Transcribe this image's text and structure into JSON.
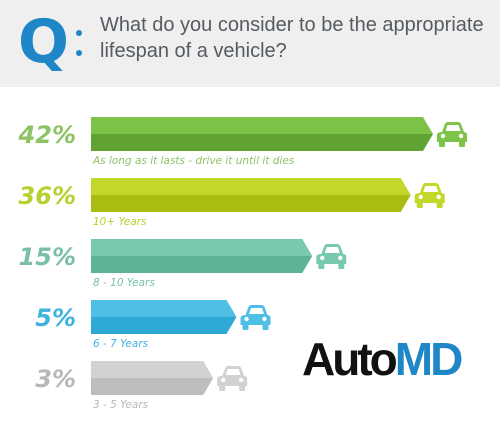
{
  "header": {
    "q_letter": "Q",
    "question": "What do you consider to be the appropriate lifespan of a vehicle?"
  },
  "chart_data": {
    "type": "bar",
    "orientation": "horizontal",
    "title": "What do you consider to be the appropriate lifespan of a vehicle?",
    "categories": [
      "As long as it lasts - drive it until it dies",
      "10+ Years",
      "8 - 10 Years",
      "6 - 7 Years",
      "3 - 5 Years"
    ],
    "values": [
      42,
      36,
      15,
      5,
      3
    ],
    "value_labels": [
      "42%",
      "36%",
      "15%",
      "5%",
      "3%"
    ],
    "unit": "%",
    "colors": [
      "#7dc34a",
      "#c3d62a",
      "#79c9ad",
      "#4fbfe6",
      "#d2d2d2"
    ],
    "dark_colors": [
      "#61a333",
      "#a9bc12",
      "#5eb394",
      "#2ea8d5",
      "#bdbdbd"
    ],
    "label_colors": [
      "#8cc465",
      "#b9cf2f",
      "#79c0a6",
      "#3fb3e0",
      "#b8b8b8"
    ],
    "icon": "car-icon",
    "grid": false,
    "legend": "none"
  },
  "logo": {
    "auto": "Auto",
    "md": "MD"
  }
}
